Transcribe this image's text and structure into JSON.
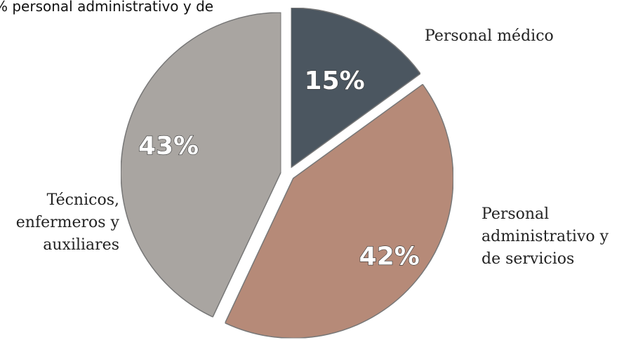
{
  "chart_data": {
    "type": "pie",
    "annotation": "% personal administrativo y de",
    "categories": [
      "Personal médico",
      "Personal administrativo y de servicios",
      "Técnicos, enfermeros y auxiliares"
    ],
    "values": [
      15,
      42,
      43
    ],
    "value_labels": [
      "15%",
      "42%",
      "43%"
    ],
    "colors": [
      "#4b5661",
      "#b68a78",
      "#a9a5a1"
    ]
  }
}
